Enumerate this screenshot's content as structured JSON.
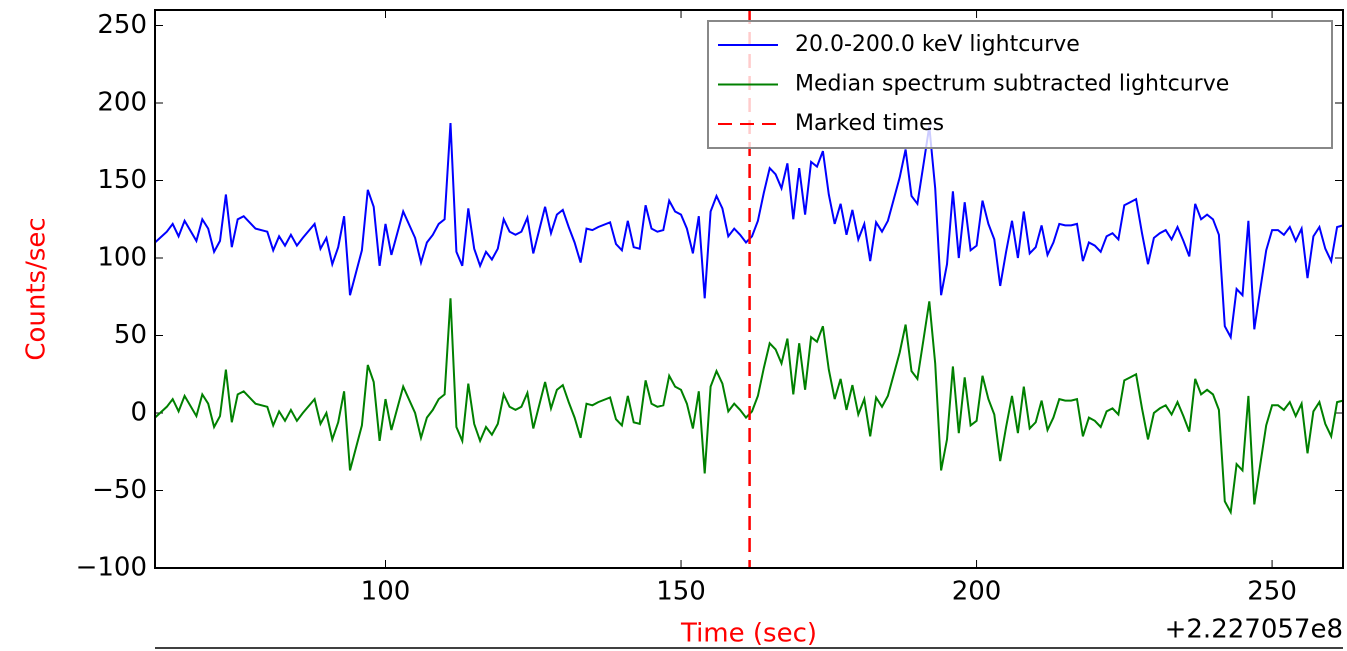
{
  "chart_data": {
    "type": "line",
    "xlabel": "Time (sec)",
    "ylabel": "Counts/sec",
    "x_offset_label": "+2.227057e8",
    "xlim": [
      61,
      262
    ],
    "ylim": [
      -100,
      260
    ],
    "xticks": [
      100,
      150,
      200,
      250
    ],
    "yticks": [
      {
        "value": -100,
        "label": "−100"
      },
      {
        "value": -50,
        "label": "−50"
      },
      0,
      50,
      100,
      150,
      200,
      250
    ],
    "legend": "upper right",
    "x": [
      61,
      63,
      64,
      65,
      66,
      68,
      69,
      70,
      71,
      72,
      73,
      74,
      75,
      76,
      78,
      80,
      81,
      82,
      83,
      84,
      85,
      86,
      88,
      89,
      90,
      91,
      92,
      93,
      94,
      96,
      97,
      98,
      99,
      100,
      101,
      103,
      105,
      106,
      107,
      108,
      109,
      110,
      111,
      112,
      113,
      114,
      115,
      116,
      117,
      118,
      119,
      120,
      121,
      122,
      123,
      124,
      125,
      126,
      127,
      128,
      129,
      130,
      131,
      132,
      133,
      134,
      135,
      136,
      138,
      139,
      140,
      141,
      142,
      143,
      144,
      145,
      146,
      147,
      148,
      149,
      150,
      151,
      152,
      153,
      154,
      155,
      156,
      157,
      158,
      159,
      160,
      161,
      162,
      163,
      164,
      165,
      166,
      167,
      168,
      169,
      170,
      171,
      172,
      173,
      174,
      175,
      176,
      177,
      178,
      179,
      180,
      181,
      182,
      183,
      184,
      185,
      186,
      187,
      188,
      189,
      190,
      191,
      192,
      193,
      194,
      195,
      196,
      197,
      198,
      199,
      200,
      201,
      202,
      203,
      204,
      205,
      206,
      207,
      208,
      209,
      210,
      211,
      212,
      213,
      214,
      215,
      216,
      217,
      218,
      219,
      220,
      221,
      222,
      223,
      224,
      225,
      226,
      227,
      228,
      229,
      230,
      231,
      232,
      233,
      234,
      235,
      236,
      237,
      238,
      239,
      240,
      241,
      242,
      243,
      244,
      245,
      246,
      247,
      248,
      249,
      250,
      251,
      252,
      253,
      254,
      255,
      256,
      257,
      258,
      259,
      260,
      261,
      262
    ],
    "series": [
      {
        "name": "20.0-200.0 keV lightcurve",
        "color": "#0000ff",
        "values": [
          110,
          117,
          122,
          114,
          124,
          111,
          125,
          119,
          104,
          111,
          141,
          107,
          125,
          127,
          119,
          117,
          105,
          114,
          108,
          115,
          108,
          113,
          122,
          106,
          113,
          96,
          107,
          127,
          76,
          105,
          144,
          133,
          95,
          122,
          102,
          130,
          113,
          97,
          110,
          115,
          122,
          125,
          187,
          104,
          95,
          132,
          106,
          95,
          104,
          99,
          106,
          125,
          117,
          115,
          117,
          126,
          103,
          118,
          133,
          116,
          128,
          131,
          120,
          110,
          97,
          119,
          118,
          120,
          123,
          109,
          105,
          124,
          107,
          106,
          134,
          119,
          117,
          118,
          137,
          130,
          128,
          119,
          103,
          127,
          74,
          130,
          140,
          132,
          114,
          119,
          115,
          110,
          114,
          124,
          142,
          158,
          154,
          145,
          161,
          125,
          158,
          128,
          162,
          159,
          169,
          141,
          122,
          135,
          115,
          131,
          112,
          122,
          98,
          123,
          117,
          124,
          138,
          152,
          170,
          140,
          135,
          160,
          185,
          145,
          76,
          96,
          143,
          100,
          136,
          105,
          108,
          137,
          122,
          112,
          82,
          104,
          124,
          100,
          130,
          103,
          107,
          121,
          102,
          110,
          122,
          121,
          121,
          122,
          98,
          110,
          108,
          104,
          114,
          116,
          112,
          134,
          136,
          138,
          116,
          96,
          113,
          116,
          118,
          112,
          120,
          111,
          101,
          135,
          125,
          128,
          125,
          115,
          56,
          49,
          80,
          76,
          124,
          54,
          80,
          105,
          118,
          118,
          115,
          120,
          111,
          119,
          87,
          114,
          120,
          106,
          98,
          120,
          121
        ]
      },
      {
        "name": "Median spectrum subtracted lightcurve",
        "color": "#008000",
        "values": [
          -3,
          4,
          9,
          1,
          11,
          -2,
          12,
          6,
          -9,
          -2,
          28,
          -6,
          12,
          14,
          6,
          4,
          -8,
          1,
          -5,
          2,
          -5,
          0,
          9,
          -7,
          0,
          -17,
          -6,
          14,
          -37,
          -8,
          31,
          20,
          -18,
          9,
          -11,
          17,
          0,
          -16,
          -3,
          2,
          9,
          12,
          74,
          -9,
          -18,
          19,
          -7,
          -18,
          -9,
          -14,
          -7,
          12,
          4,
          2,
          4,
          13,
          -10,
          5,
          20,
          3,
          15,
          18,
          7,
          -3,
          -16,
          6,
          5,
          7,
          10,
          -4,
          -8,
          11,
          -6,
          -7,
          21,
          6,
          4,
          5,
          24,
          17,
          15,
          6,
          -10,
          14,
          -39,
          17,
          27,
          19,
          1,
          6,
          2,
          -3,
          1,
          11,
          29,
          45,
          41,
          32,
          48,
          12,
          45,
          15,
          49,
          46,
          56,
          28,
          9,
          22,
          2,
          18,
          -1,
          9,
          -15,
          10,
          4,
          11,
          25,
          39,
          57,
          27,
          22,
          47,
          72,
          32,
          -37,
          -17,
          30,
          -13,
          23,
          -8,
          -5,
          24,
          9,
          -1,
          -31,
          -9,
          11,
          -13,
          17,
          -10,
          -6,
          8,
          -11,
          -3,
          9,
          8,
          8,
          9,
          -15,
          -3,
          -5,
          -9,
          1,
          3,
          -1,
          21,
          23,
          25,
          3,
          -17,
          0,
          3,
          5,
          -1,
          7,
          -2,
          -12,
          22,
          12,
          15,
          12,
          2,
          -57,
          -64,
          -33,
          -37,
          11,
          -59,
          -33,
          -8,
          5,
          5,
          2,
          7,
          -2,
          6,
          -26,
          1,
          7,
          -7,
          -15,
          7,
          8
        ]
      }
    ],
    "marker_line": {
      "name": "Marked times",
      "color": "#ff0000",
      "values": [
        161.6
      ]
    }
  }
}
